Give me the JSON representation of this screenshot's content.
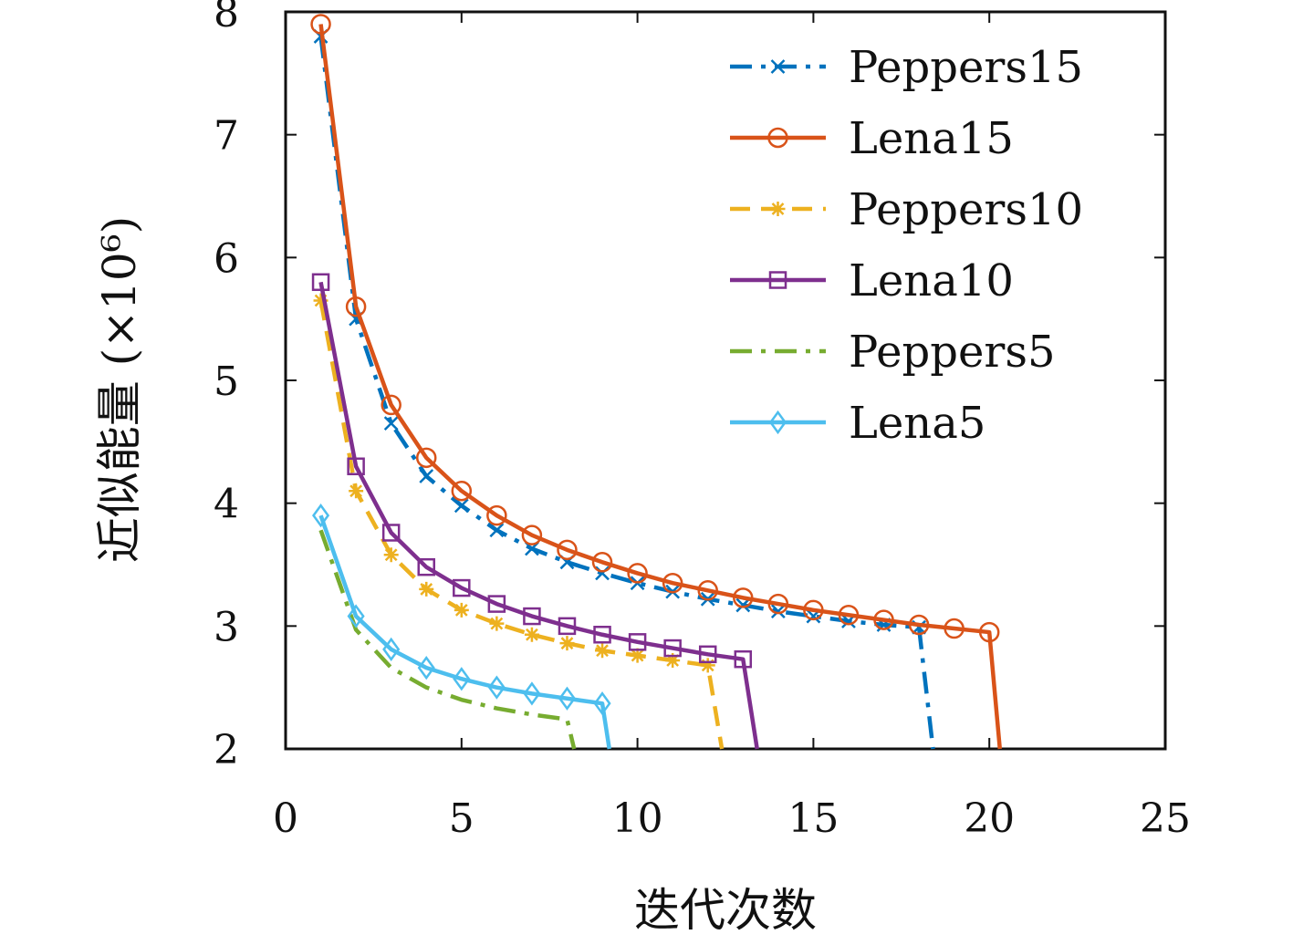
{
  "chart_data": {
    "type": "line",
    "title": "",
    "xlabel": "迭代次数",
    "ylabel": "近似能量 (×10⁶)",
    "xlim": [
      0,
      25
    ],
    "ylim": [
      2,
      8
    ],
    "xticks": [
      0,
      5,
      10,
      15,
      20,
      25
    ],
    "yticks": [
      2,
      3,
      4,
      5,
      6,
      7,
      8
    ],
    "grid": false,
    "legend_position": "top-right",
    "series": [
      {
        "name": "Peppers15",
        "color": "#0072BD",
        "line": "dashdot",
        "marker": "x",
        "x": [
          1,
          2,
          3,
          4,
          5,
          6,
          7,
          8,
          9,
          10,
          11,
          12,
          13,
          14,
          15,
          16,
          17,
          18,
          18.4
        ],
        "y": [
          7.8,
          5.5,
          4.65,
          4.22,
          3.98,
          3.78,
          3.63,
          3.52,
          3.43,
          3.35,
          3.28,
          3.22,
          3.17,
          3.12,
          3.08,
          3.04,
          3.01,
          2.99,
          2.0
        ],
        "marker_count": 18
      },
      {
        "name": "Lena15",
        "color": "#D95319",
        "line": "solid",
        "marker": "circle",
        "x": [
          1,
          2,
          3,
          4,
          5,
          6,
          7,
          8,
          9,
          10,
          11,
          12,
          13,
          14,
          15,
          16,
          17,
          18,
          19,
          20,
          20.3
        ],
        "y": [
          7.9,
          5.6,
          4.8,
          4.37,
          4.1,
          3.9,
          3.74,
          3.62,
          3.52,
          3.43,
          3.35,
          3.29,
          3.23,
          3.18,
          3.13,
          3.09,
          3.05,
          3.01,
          2.98,
          2.95,
          2.0
        ],
        "marker_count": 20
      },
      {
        "name": "Peppers10",
        "color": "#EDB120",
        "line": "dashed",
        "marker": "asterisk",
        "x": [
          1,
          2,
          3,
          4,
          5,
          6,
          7,
          8,
          9,
          10,
          11,
          12,
          12.4
        ],
        "y": [
          5.65,
          4.1,
          3.58,
          3.3,
          3.13,
          3.02,
          2.93,
          2.86,
          2.8,
          2.76,
          2.72,
          2.68,
          2.0
        ],
        "marker_count": 12
      },
      {
        "name": "Lena10",
        "color": "#7E2F8E",
        "line": "solid",
        "marker": "square",
        "x": [
          1,
          2,
          3,
          4,
          5,
          6,
          7,
          8,
          9,
          10,
          11,
          12,
          13,
          13.4
        ],
        "y": [
          5.8,
          4.3,
          3.76,
          3.48,
          3.31,
          3.18,
          3.08,
          3.0,
          2.93,
          2.87,
          2.82,
          2.77,
          2.73,
          2.0
        ],
        "marker_count": 13
      },
      {
        "name": "Peppers5",
        "color": "#77AC30",
        "line": "dashdot",
        "marker": "none",
        "x": [
          1,
          2,
          3,
          4,
          5,
          6,
          7,
          8,
          8.2
        ],
        "y": [
          3.78,
          2.97,
          2.66,
          2.5,
          2.4,
          2.33,
          2.28,
          2.24,
          2.0
        ],
        "marker_count": 0
      },
      {
        "name": "Lena5",
        "color": "#4DBEEE",
        "line": "solid",
        "marker": "diamond",
        "x": [
          1,
          2,
          3,
          4,
          5,
          6,
          7,
          8,
          9,
          9.2
        ],
        "y": [
          3.9,
          3.08,
          2.81,
          2.66,
          2.57,
          2.5,
          2.45,
          2.41,
          2.37,
          2.0
        ],
        "marker_count": 9
      }
    ]
  }
}
